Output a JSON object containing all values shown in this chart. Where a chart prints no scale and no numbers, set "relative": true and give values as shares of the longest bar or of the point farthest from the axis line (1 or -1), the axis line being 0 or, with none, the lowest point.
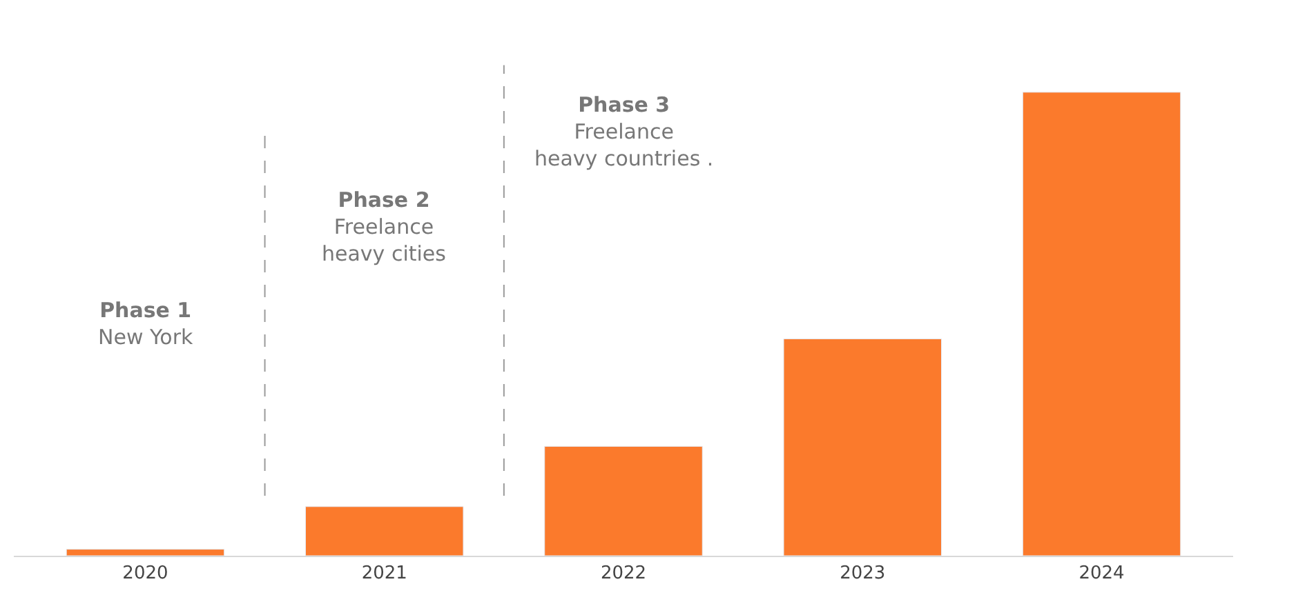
{
  "chart_data": {
    "type": "bar",
    "relative": true,
    "categories": [
      "2020",
      "2021",
      "2022",
      "2023",
      "2024"
    ],
    "values": [
      0.014,
      0.106,
      0.236,
      0.468,
      1
    ],
    "color": "#fb7a2c",
    "annotations": [
      "Phase 1\nNew York",
      "Phase 2\nFreelance\nheavy cities",
      "Phase 3\nFreelance\nheavy countries ."
    ]
  }
}
